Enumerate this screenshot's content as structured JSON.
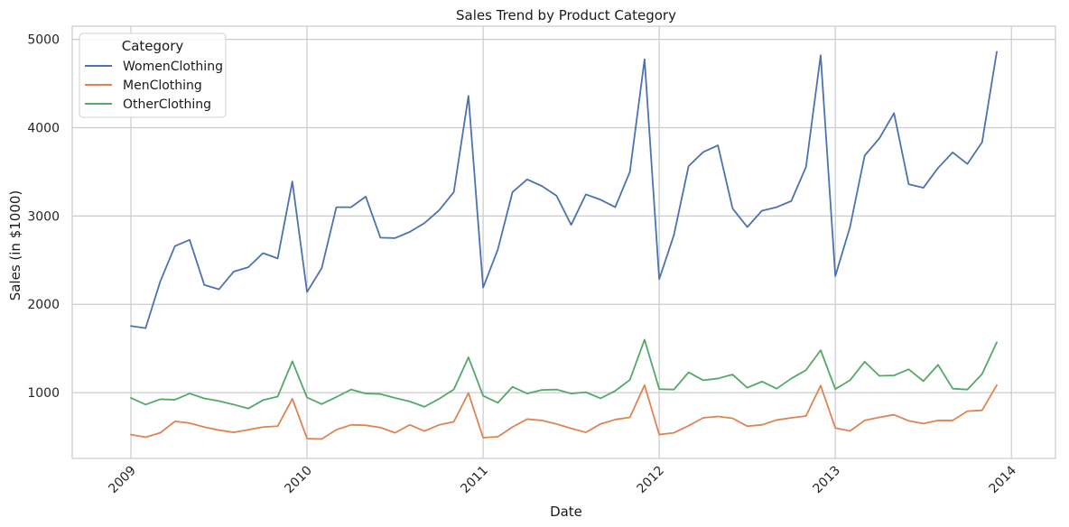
{
  "chart_data": {
    "type": "line",
    "title": "Sales Trend by Product Category",
    "xlabel": "Date",
    "ylabel": "Sales (in $1000)",
    "x_tick_labels": [
      "2009",
      "2010",
      "2011",
      "2012",
      "2013",
      "2014"
    ],
    "y_tick_labels": [
      "1000",
      "2000",
      "3000",
      "4000",
      "5000"
    ],
    "y_ticks": [
      1000,
      2000,
      3000,
      4000,
      5000
    ],
    "ylim": [
      255,
      5150
    ],
    "xlim": [
      "2008-09",
      "2014-04"
    ],
    "x": [
      "2009-01",
      "2009-02",
      "2009-03",
      "2009-04",
      "2009-05",
      "2009-06",
      "2009-07",
      "2009-08",
      "2009-09",
      "2009-10",
      "2009-11",
      "2009-12",
      "2010-01",
      "2010-02",
      "2010-03",
      "2010-04",
      "2010-05",
      "2010-06",
      "2010-07",
      "2010-08",
      "2010-09",
      "2010-10",
      "2010-11",
      "2010-12",
      "2011-01",
      "2011-02",
      "2011-03",
      "2011-04",
      "2011-05",
      "2011-06",
      "2011-07",
      "2011-08",
      "2011-09",
      "2011-10",
      "2011-11",
      "2011-12",
      "2012-01",
      "2012-02",
      "2012-03",
      "2012-04",
      "2012-05",
      "2012-06",
      "2012-07",
      "2012-08",
      "2012-09",
      "2012-10",
      "2012-11",
      "2012-12",
      "2013-01",
      "2013-02",
      "2013-03",
      "2013-04",
      "2013-05",
      "2013-06",
      "2013-07",
      "2013-08",
      "2013-09",
      "2013-10",
      "2013-11",
      "2013-12"
    ],
    "series": [
      {
        "name": "WomenClothing",
        "color": "#4c72b0",
        "values": [
          1755,
          1730,
          2260,
          2660,
          2730,
          2220,
          2170,
          2370,
          2420,
          2580,
          2520,
          3390,
          2140,
          2410,
          3100,
          3100,
          3220,
          2755,
          2750,
          2820,
          2920,
          3065,
          3270,
          4360,
          2190,
          2620,
          3270,
          3415,
          3340,
          3230,
          2900,
          3245,
          3185,
          3100,
          3500,
          4775,
          2285,
          2785,
          3565,
          3725,
          3800,
          3085,
          2875,
          3060,
          3100,
          3170,
          3555,
          4820,
          2320,
          2875,
          3685,
          3880,
          4165,
          3360,
          3320,
          3545,
          3720,
          3590,
          3835,
          4860
        ]
      },
      {
        "name": "MenClothing",
        "color": "#dd8452",
        "values": [
          525,
          495,
          545,
          675,
          655,
          610,
          575,
          550,
          580,
          610,
          620,
          930,
          480,
          475,
          580,
          635,
          630,
          605,
          545,
          635,
          565,
          635,
          670,
          995,
          490,
          500,
          610,
          700,
          685,
          645,
          595,
          550,
          645,
          695,
          720,
          1085,
          525,
          545,
          625,
          715,
          730,
          710,
          620,
          635,
          690,
          715,
          735,
          1080,
          600,
          565,
          685,
          720,
          750,
          680,
          650,
          685,
          685,
          790,
          800,
          1085
        ]
      },
      {
        "name": "OtherClothing",
        "color": "#55a868",
        "values": [
          940,
          865,
          925,
          920,
          990,
          935,
          905,
          865,
          820,
          915,
          955,
          1355,
          945,
          870,
          950,
          1035,
          990,
          985,
          940,
          900,
          840,
          930,
          1035,
          1400,
          965,
          885,
          1065,
          990,
          1030,
          1035,
          990,
          1005,
          935,
          1020,
          1145,
          1600,
          1040,
          1035,
          1230,
          1140,
          1160,
          1205,
          1055,
          1125,
          1045,
          1160,
          1255,
          1480,
          1040,
          1140,
          1350,
          1190,
          1195,
          1265,
          1130,
          1315,
          1045,
          1035,
          1210,
          1570
        ]
      }
    ],
    "legend": {
      "title": "Category",
      "placement": "top-left"
    },
    "grid": true
  }
}
